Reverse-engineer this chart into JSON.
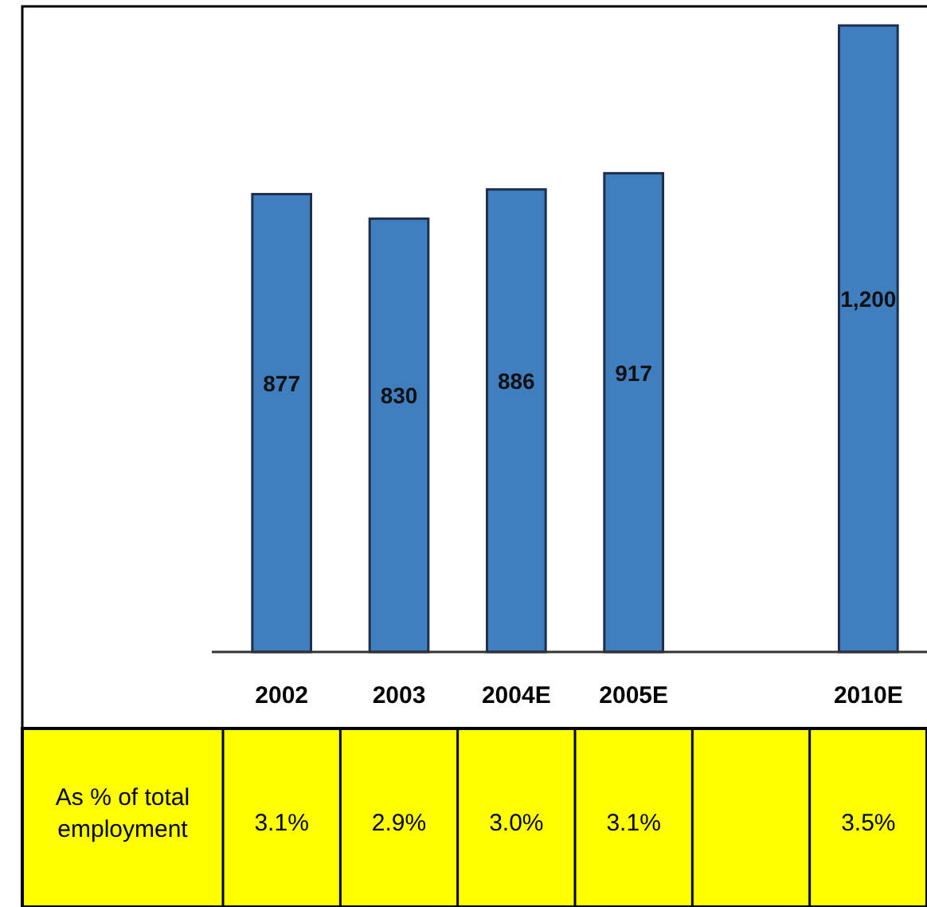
{
  "chart_data": {
    "type": "bar",
    "categories": [
      "2002",
      "2003",
      "2004E",
      "2005E",
      null,
      "2010E"
    ],
    "values": [
      877,
      830,
      886,
      917,
      null,
      1200
    ],
    "value_labels": [
      "877",
      "830",
      "886",
      "917",
      null,
      "1,200"
    ],
    "color": "#3f7fc0",
    "annotations": [
      "As % of total employment",
      "3.1%",
      "2.9%",
      "3.0%",
      "3.1%",
      "3.5%"
    ]
  }
}
